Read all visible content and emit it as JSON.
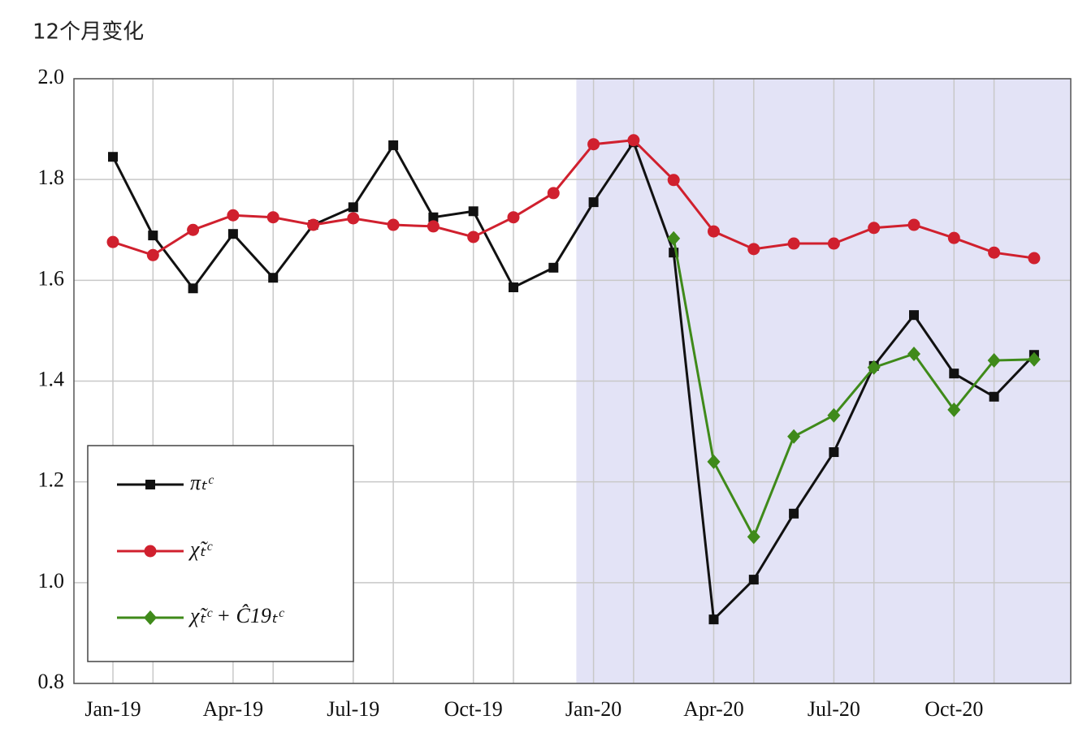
{
  "chart_data": {
    "type": "line",
    "title": "12个月变化",
    "categories": [
      "Jan-19",
      null,
      null,
      "Apr-19",
      null,
      null,
      "Jul-19",
      null,
      null,
      "Oct-19",
      null,
      null,
      "Jan-20",
      null,
      null,
      "Apr-20",
      null,
      null,
      "Jul-20",
      null,
      null,
      "Oct-20",
      null,
      null
    ],
    "series": [
      {
        "name": "πₜᶜ",
        "color": "#111111",
        "marker": "square",
        "values": [
          1.845,
          1.689,
          1.584,
          1.692,
          1.605,
          1.71,
          1.745,
          1.868,
          1.725,
          1.737,
          1.586,
          1.625,
          1.755,
          1.874,
          1.655,
          0.927,
          1.006,
          1.137,
          1.259,
          1.43,
          1.531,
          1.415,
          1.369,
          1.452
        ]
      },
      {
        "name": "χ̃ₜᶜ",
        "color": "#d0202e",
        "marker": "circle",
        "values": [
          1.676,
          1.65,
          1.7,
          1.729,
          1.725,
          1.71,
          1.723,
          1.71,
          1.707,
          1.686,
          1.725,
          1.773,
          1.87,
          1.878,
          1.799,
          1.697,
          1.662,
          1.673,
          1.673,
          1.704,
          1.71,
          1.684,
          1.655,
          1.644
        ]
      },
      {
        "name": "χ̃ₜᶜ + Ĉ19ₜᶜ",
        "color": "#3f8a1a",
        "marker": "diamond",
        "values": [
          null,
          null,
          null,
          null,
          null,
          null,
          null,
          null,
          null,
          null,
          null,
          null,
          null,
          null,
          1.683,
          1.24,
          1.091,
          1.29,
          1.332,
          1.427,
          1.454,
          1.343,
          1.441,
          1.443
        ]
      }
    ],
    "ylim": [
      0.8,
      2.0
    ],
    "yticks": [
      {
        "value": 0.8,
        "label": "0.8"
      },
      {
        "value": 1.0,
        "label": "1.0"
      },
      1.2,
      1.4,
      1.6,
      1.8,
      {
        "value": 2.0,
        "label": "2.0"
      }
    ],
    "grid": true,
    "legend": "lower left",
    "shade_color": "#e3e3f6"
  }
}
